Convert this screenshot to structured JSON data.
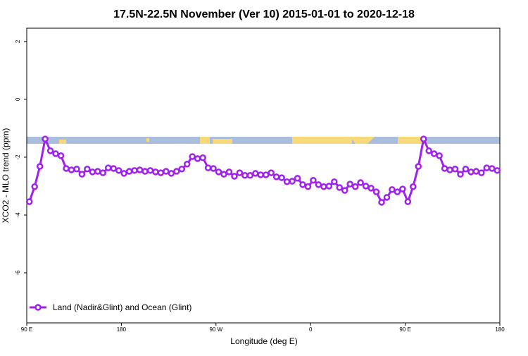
{
  "chart_data": {
    "type": "line",
    "title": "17.5N-22.5N November (Ver 10)   2015-01-01 to 2020-12-18",
    "xlabel": "Longitude (deg E)",
    "ylabel": "XCO2 - MLO trend (ppm)",
    "xlim": [
      90,
      540
    ],
    "xticks": [
      {
        "value": 90,
        "label": "90 E"
      },
      {
        "value": 180,
        "label": "180"
      },
      {
        "value": 270,
        "label": "90 W"
      },
      {
        "value": 360,
        "label": "0"
      },
      {
        "value": 450,
        "label": "90 E"
      },
      {
        "value": 540,
        "label": "180"
      }
    ],
    "ylim": [
      -7.73,
      2.46
    ],
    "yticks": [
      2,
      0,
      -2,
      -4,
      -6
    ],
    "legend": "bottom-left",
    "x": [
      92.5,
      97.5,
      102.5,
      107.5,
      112.5,
      117.5,
      122.5,
      127.5,
      132.5,
      137.5,
      142.5,
      147.5,
      152.5,
      157.5,
      162.5,
      167.5,
      172.5,
      177.5,
      182.5,
      187.5,
      192.5,
      197.5,
      202.5,
      207.5,
      212.5,
      217.5,
      222.5,
      227.5,
      232.5,
      237.5,
      242.5,
      247.5,
      252.5,
      257.5,
      262.5,
      267.5,
      272.5,
      277.5,
      282.5,
      287.5,
      292.5,
      297.5,
      302.5,
      307.5,
      312.5,
      317.5,
      322.5,
      327.5,
      332.5,
      337.5,
      342.5,
      347.5,
      352.5,
      357.5,
      362.5,
      367.5,
      372.5,
      377.5,
      382.5,
      387.5,
      392.5,
      397.5,
      402.5,
      407.5,
      412.5,
      417.5,
      422.5,
      427.5,
      432.5,
      437.5,
      442.5,
      447.5,
      452.5,
      457.5,
      462.5,
      467.5,
      472.5,
      477.5,
      482.5,
      487.5,
      492.5,
      497.5,
      502.5,
      507.5,
      512.5,
      517.5,
      522.5,
      527.5,
      532.5,
      537.5
    ],
    "series": [
      {
        "name": "Land (Nadir&Glint) and Ocean (Glint)",
        "color": "#a020f0",
        "values": [
          -3.54,
          -3.02,
          -2.32,
          -1.37,
          -1.78,
          -1.88,
          -1.95,
          -2.39,
          -2.44,
          -2.41,
          -2.59,
          -2.41,
          -2.51,
          -2.49,
          -2.54,
          -2.37,
          -2.39,
          -2.46,
          -2.56,
          -2.49,
          -2.46,
          -2.44,
          -2.49,
          -2.46,
          -2.51,
          -2.54,
          -2.49,
          -2.56,
          -2.49,
          -2.41,
          -2.24,
          -1.98,
          -2.05,
          -2.02,
          -2.37,
          -2.39,
          -2.51,
          -2.59,
          -2.51,
          -2.66,
          -2.54,
          -2.63,
          -2.63,
          -2.56,
          -2.61,
          -2.61,
          -2.54,
          -2.68,
          -2.71,
          -2.85,
          -2.83,
          -2.73,
          -2.95,
          -3.02,
          -2.8,
          -2.95,
          -3.02,
          -3.0,
          -2.85,
          -3.05,
          -3.15,
          -2.93,
          -3.02,
          -2.88,
          -3.0,
          -3.07,
          -3.2,
          -3.56,
          -3.39,
          -3.12,
          -3.2,
          -3.1,
          -3.54,
          -3.02,
          -2.32,
          -1.37,
          -1.78,
          -1.88,
          -1.95,
          -2.39,
          -2.44,
          -2.41,
          -2.59,
          -2.41,
          -2.51,
          -2.49,
          -2.54,
          -2.37,
          -2.39,
          -2.46
        ]
      }
    ]
  }
}
